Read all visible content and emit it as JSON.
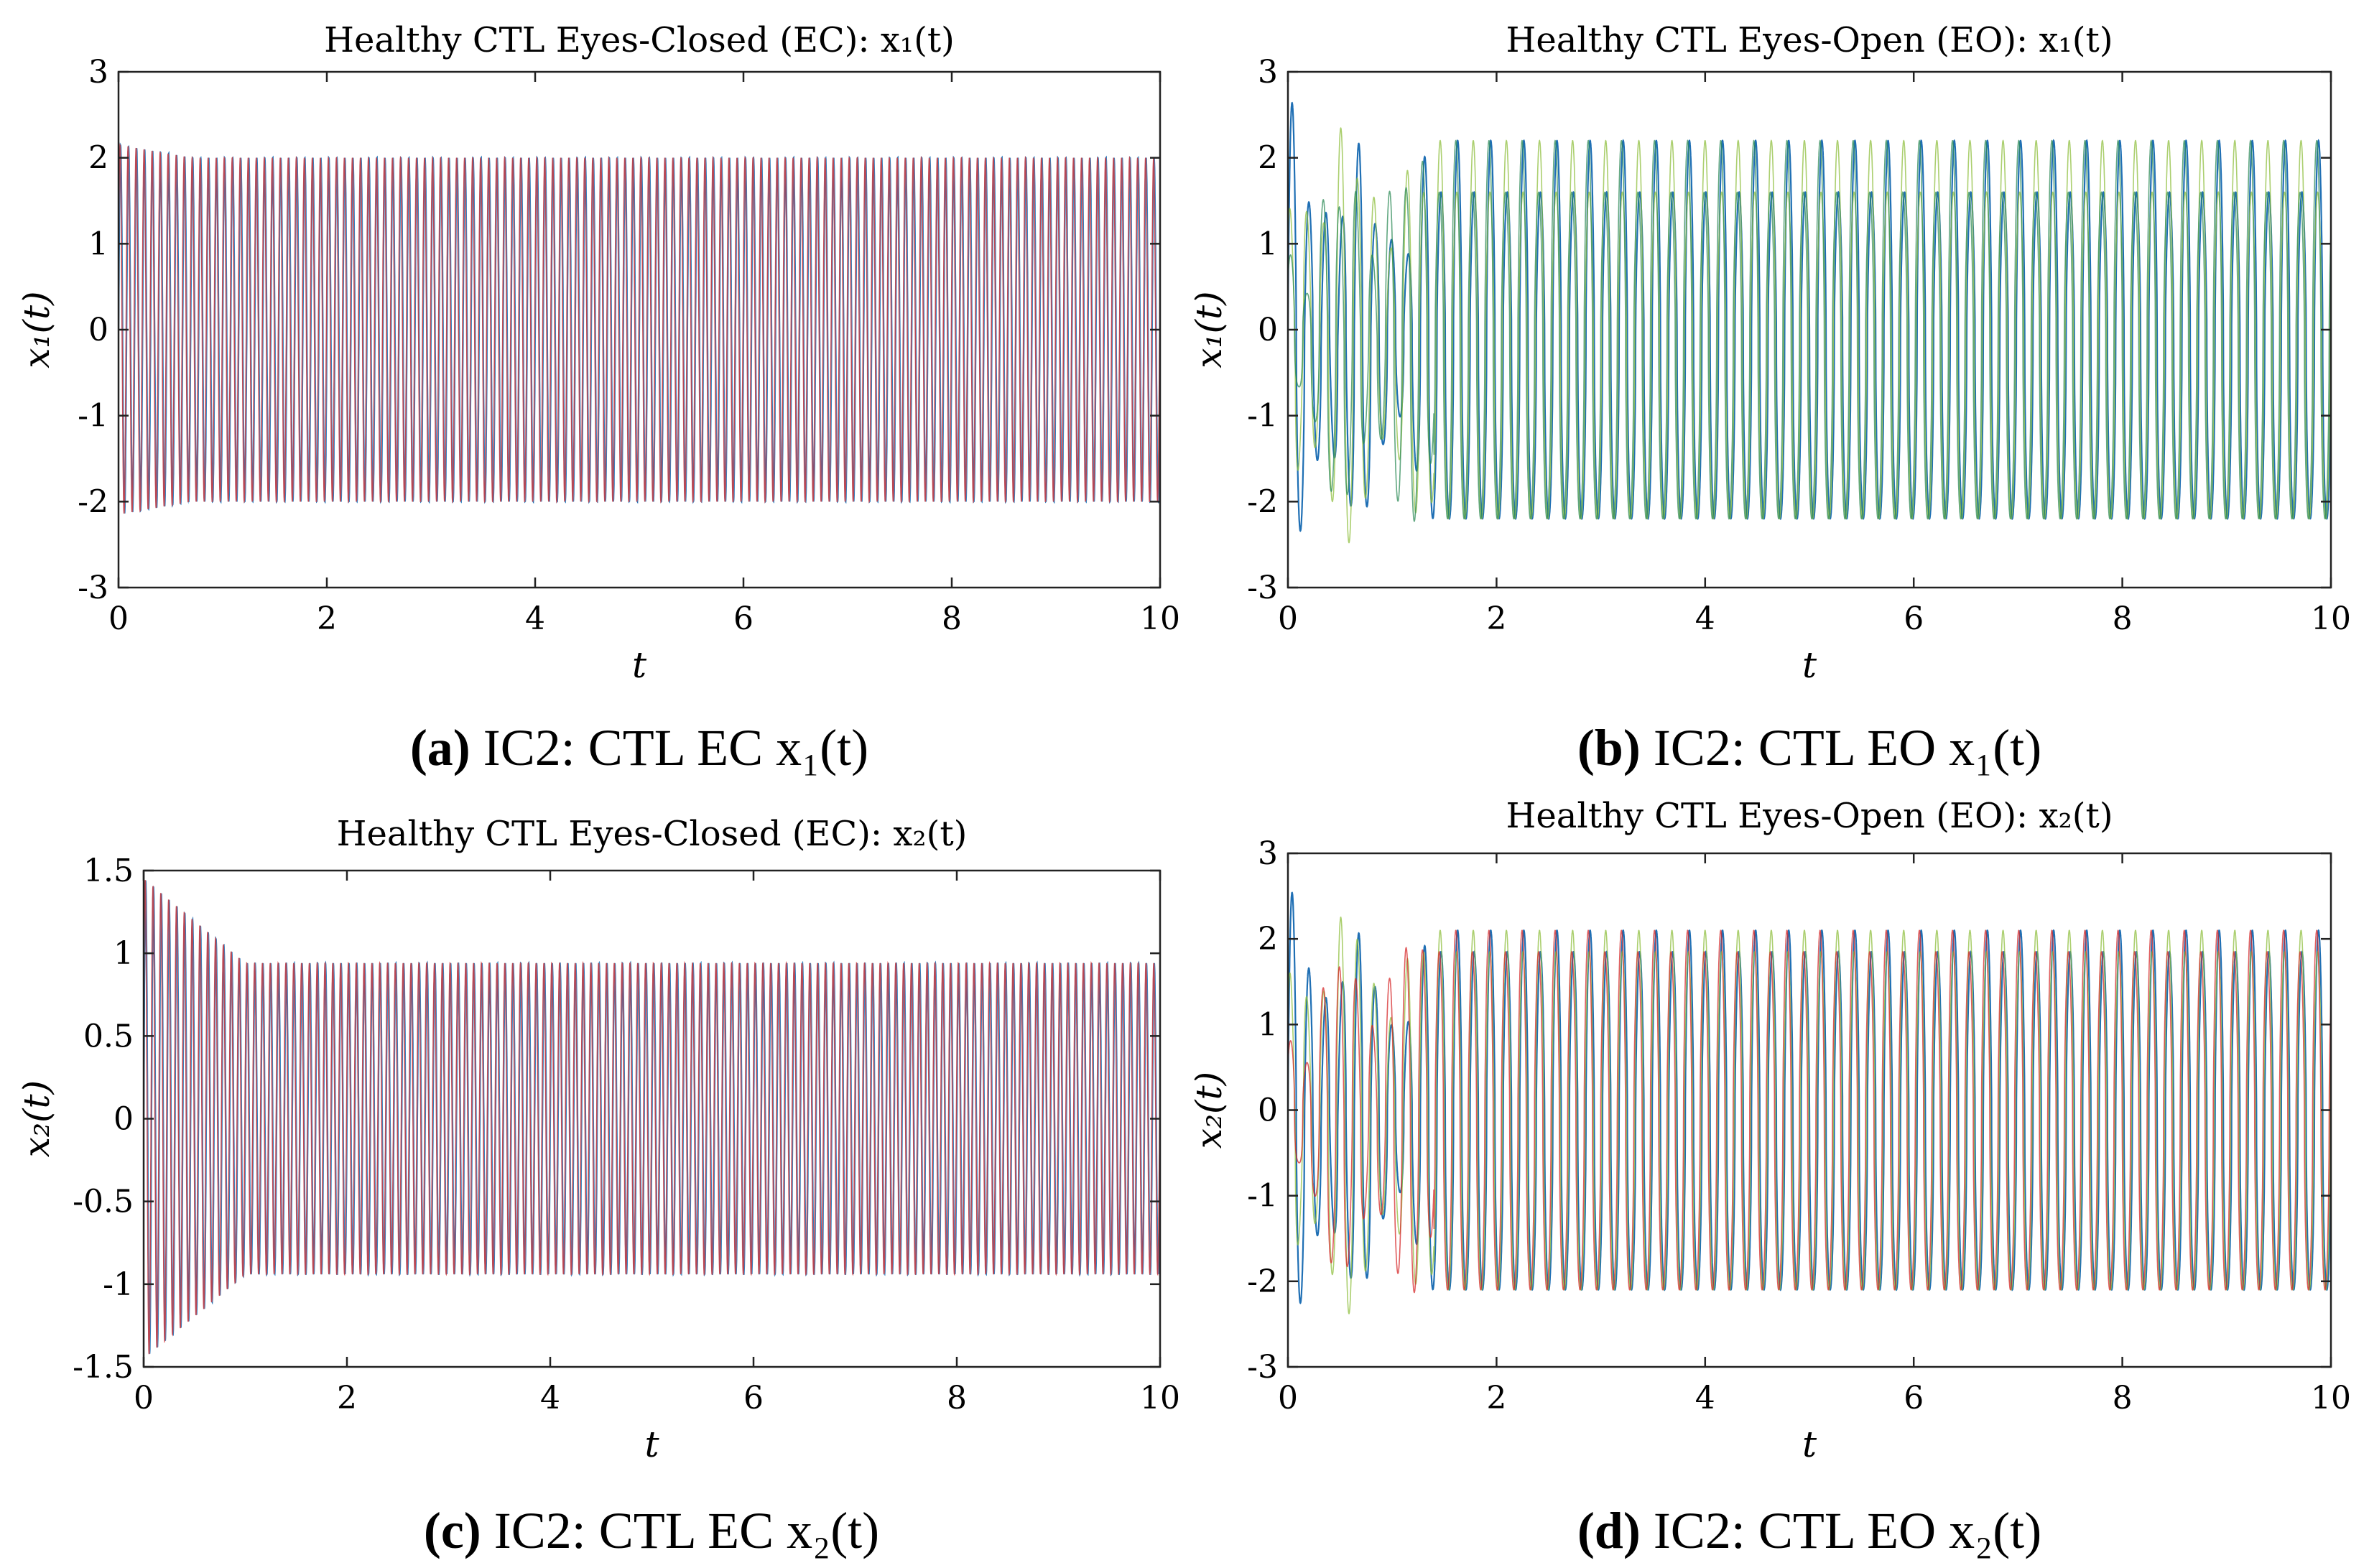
{
  "figure": {
    "panels": [
      {
        "id": "a",
        "caption": {
          "letter": "(a)",
          "text": "IC2: CTL EC x₁(t)"
        },
        "chart_data": {
          "type": "line",
          "title": "Healthy CTL Eyes-Closed (EC): x₁(t)",
          "xlabel": "t",
          "ylabel": "x₁(t)",
          "xlim": [
            0,
            10
          ],
          "ylim": [
            -3,
            3
          ],
          "xticks": [
            "0",
            "2",
            "4",
            "6",
            "8",
            "10"
          ],
          "yticks": [
            "-3",
            "-2",
            "-1",
            "0",
            "1",
            "2",
            "3"
          ],
          "signal": {
            "frequency_hz": 13,
            "amplitude": 2.0,
            "transient_amplitude": 2.15,
            "transient_end": 0.7
          },
          "series_colors": [
            "#1f6fb4",
            "#6fb8e6",
            "#d62728"
          ]
        }
      },
      {
        "id": "b",
        "caption": {
          "letter": "(b)",
          "text": "IC2: CTL EO x₁(t)"
        },
        "chart_data": {
          "type": "line",
          "title": "Healthy CTL Eyes-Open (EO): x₁(t)",
          "xlabel": "t",
          "ylabel": "x₁(t)",
          "xlim": [
            0,
            10
          ],
          "ylim": [
            -3,
            3
          ],
          "xticks": [
            "0",
            "2",
            "4",
            "6",
            "8",
            "10"
          ],
          "yticks": [
            "-3",
            "-2",
            "-1",
            "0",
            "1",
            "2",
            "3"
          ],
          "signal": {
            "frequency_hz": 6.3,
            "amplitude_high": 2.2,
            "amplitude_low": 1.6,
            "min": -2.2
          },
          "series_colors": [
            "#1f6fb4",
            "#8fbf3f",
            "#2e8b57"
          ]
        }
      },
      {
        "id": "c",
        "caption": {
          "letter": "(c)",
          "text": "IC2: CTL EC x₂(t)"
        },
        "chart_data": {
          "type": "line",
          "title": "Healthy CTL Eyes-Closed (EC): x₂(t)",
          "xlabel": "t",
          "ylabel": "x₂(t)",
          "xlim": [
            0,
            10
          ],
          "ylim": [
            -1.5,
            1.5
          ],
          "xticks": [
            "0",
            "2",
            "4",
            "6",
            "8",
            "10"
          ],
          "yticks": [
            "-1.5",
            "-1",
            "-0.5",
            "0",
            "0.5",
            "1",
            "1.5"
          ],
          "signal": {
            "frequency_hz": 13,
            "amplitude": 0.94,
            "transient_amplitude": 1.45,
            "transient_end": 1.0
          },
          "series_colors": [
            "#1f6fb4",
            "#6fb8e6",
            "#d62728"
          ]
        }
      },
      {
        "id": "d",
        "caption": {
          "letter": "(d)",
          "text": "IC2: CTL EO x₂(t)"
        },
        "chart_data": {
          "type": "line",
          "title": "Healthy CTL Eyes-Open (EO): x₂(t)",
          "xlabel": "t",
          "ylabel": "x₂(t)",
          "xlim": [
            0,
            10
          ],
          "ylim": [
            -3,
            3
          ],
          "xticks": [
            "0",
            "2",
            "4",
            "6",
            "8",
            "10"
          ],
          "yticks": [
            "-3",
            "-2",
            "-1",
            "0",
            "1",
            "2",
            "3"
          ],
          "signal": {
            "frequency_hz": 6.3,
            "amplitude_high": 2.1,
            "amplitude_low": 1.85,
            "min": -2.1
          },
          "series_colors": [
            "#1f6fb4",
            "#8fbf3f",
            "#d62728"
          ]
        }
      }
    ]
  }
}
